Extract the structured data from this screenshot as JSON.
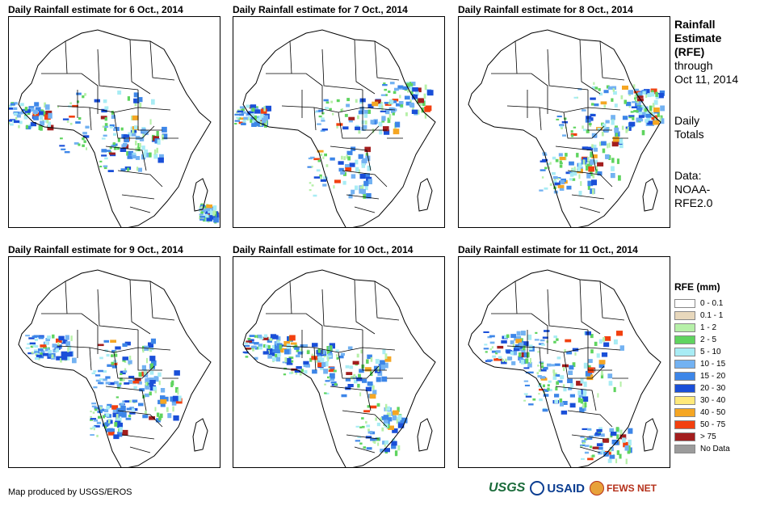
{
  "panels": [
    {
      "title": "Daily Rainfall estimate for 6 Oct., 2014"
    },
    {
      "title": "Daily Rainfall estimate for 7 Oct., 2014"
    },
    {
      "title": "Daily Rainfall estimate for 8 Oct., 2014"
    },
    {
      "title": "Daily Rainfall estimate for 9 Oct., 2014"
    },
    {
      "title": "Daily Rainfall estimate for 10 Oct., 2014"
    },
    {
      "title": "Daily Rainfall estimate for 11 Oct., 2014"
    }
  ],
  "side": {
    "heading_1": "Rainfall",
    "heading_2": "Estimate",
    "heading_3": "(RFE)",
    "through": "through",
    "date": "Oct 11, 2014",
    "daily_1": "Daily",
    "daily_2": "Totals",
    "data_1": "Data:",
    "data_2": "NOAA-",
    "data_3": "RFE2.0"
  },
  "legend": {
    "title": "RFE (mm)",
    "items": [
      {
        "label": "0 - 0.1",
        "color": "#ffffff"
      },
      {
        "label": "0.1 - 1",
        "color": "#e8d8bc"
      },
      {
        "label": "1 - 2",
        "color": "#b6f0a8"
      },
      {
        "label": "2 - 5",
        "color": "#5fd45f"
      },
      {
        "label": "5 - 10",
        "color": "#a8ecf4"
      },
      {
        "label": "10 - 15",
        "color": "#73b2f2"
      },
      {
        "label": "15 - 20",
        "color": "#3d86e8"
      },
      {
        "label": "20 - 30",
        "color": "#1a4fd8"
      },
      {
        "label": "30 - 40",
        "color": "#ffe97a"
      },
      {
        "label": "40 - 50",
        "color": "#f5a623"
      },
      {
        "label": "50 - 75",
        "color": "#f2400f"
      },
      {
        "label": "> 75",
        "color": "#a31e1e"
      },
      {
        "label": "No Data",
        "color": "#9b9b9b"
      }
    ]
  },
  "footer": {
    "credit": "Map produced by USGS/EROS",
    "logo_usgs": "USGS",
    "logo_usaid": "USAID",
    "logo_fews": "FEWS NET"
  }
}
